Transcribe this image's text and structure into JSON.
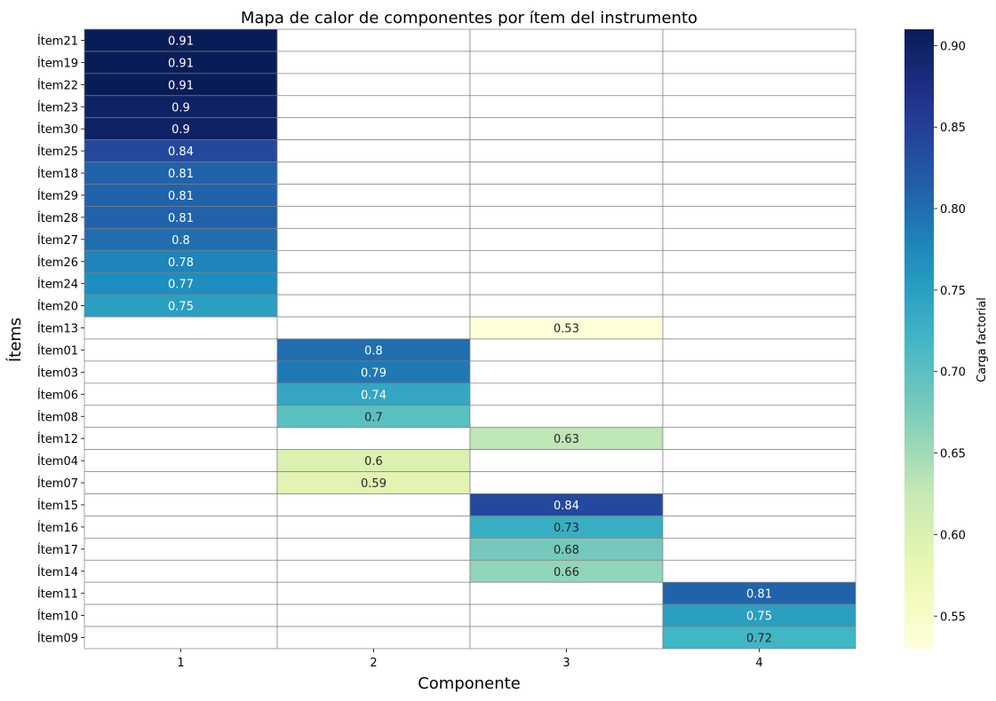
{
  "chart_data": {
    "type": "heatmap",
    "title": "Mapa de calor de componentes por ítem del instrumento",
    "xlabel": "Componente",
    "ylabel": "Ítems",
    "colorbar_label": "Carga factorial",
    "colormap": "YlGnBu",
    "vmin": 0.53,
    "vmax": 0.91,
    "colorbar_ticks": [
      "0.55",
      "0.60",
      "0.65",
      "0.70",
      "0.75",
      "0.80",
      "0.85",
      "0.90"
    ],
    "columns": [
      "1",
      "2",
      "3",
      "4"
    ],
    "rows": [
      {
        "item": "Ítem21",
        "component": 1,
        "value": 0.91,
        "label": "0.91"
      },
      {
        "item": "Ítem19",
        "component": 1,
        "value": 0.91,
        "label": "0.91"
      },
      {
        "item": "Ítem22",
        "component": 1,
        "value": 0.91,
        "label": "0.91"
      },
      {
        "item": "Ítem23",
        "component": 1,
        "value": 0.9,
        "label": "0.9"
      },
      {
        "item": "Ítem30",
        "component": 1,
        "value": 0.9,
        "label": "0.9"
      },
      {
        "item": "Ítem25",
        "component": 1,
        "value": 0.84,
        "label": "0.84"
      },
      {
        "item": "Ítem18",
        "component": 1,
        "value": 0.81,
        "label": "0.81"
      },
      {
        "item": "Ítem29",
        "component": 1,
        "value": 0.81,
        "label": "0.81"
      },
      {
        "item": "Ítem28",
        "component": 1,
        "value": 0.81,
        "label": "0.81"
      },
      {
        "item": "Ítem27",
        "component": 1,
        "value": 0.8,
        "label": "0.8"
      },
      {
        "item": "Ítem26",
        "component": 1,
        "value": 0.78,
        "label": "0.78"
      },
      {
        "item": "Ítem24",
        "component": 1,
        "value": 0.77,
        "label": "0.77"
      },
      {
        "item": "Ítem20",
        "component": 1,
        "value": 0.75,
        "label": "0.75"
      },
      {
        "item": "Ítem13",
        "component": 3,
        "value": 0.53,
        "label": "0.53"
      },
      {
        "item": "Ítem01",
        "component": 2,
        "value": 0.8,
        "label": "0.8"
      },
      {
        "item": "Ítem03",
        "component": 2,
        "value": 0.79,
        "label": "0.79"
      },
      {
        "item": "Ítem06",
        "component": 2,
        "value": 0.74,
        "label": "0.74"
      },
      {
        "item": "Ítem08",
        "component": 2,
        "value": 0.7,
        "label": "0.7"
      },
      {
        "item": "Ítem12",
        "component": 3,
        "value": 0.63,
        "label": "0.63"
      },
      {
        "item": "Ítem04",
        "component": 2,
        "value": 0.6,
        "label": "0.6"
      },
      {
        "item": "Ítem07",
        "component": 2,
        "value": 0.59,
        "label": "0.59"
      },
      {
        "item": "Ítem15",
        "component": 3,
        "value": 0.84,
        "label": "0.84"
      },
      {
        "item": "Ítem16",
        "component": 3,
        "value": 0.73,
        "label": "0.73"
      },
      {
        "item": "Ítem17",
        "component": 3,
        "value": 0.68,
        "label": "0.68"
      },
      {
        "item": "Ítem14",
        "component": 3,
        "value": 0.66,
        "label": "0.66"
      },
      {
        "item": "Ítem11",
        "component": 4,
        "value": 0.81,
        "label": "0.81"
      },
      {
        "item": "Ítem10",
        "component": 4,
        "value": 0.75,
        "label": "0.75"
      },
      {
        "item": "Ítem09",
        "component": 4,
        "value": 0.72,
        "label": "0.72"
      }
    ]
  }
}
